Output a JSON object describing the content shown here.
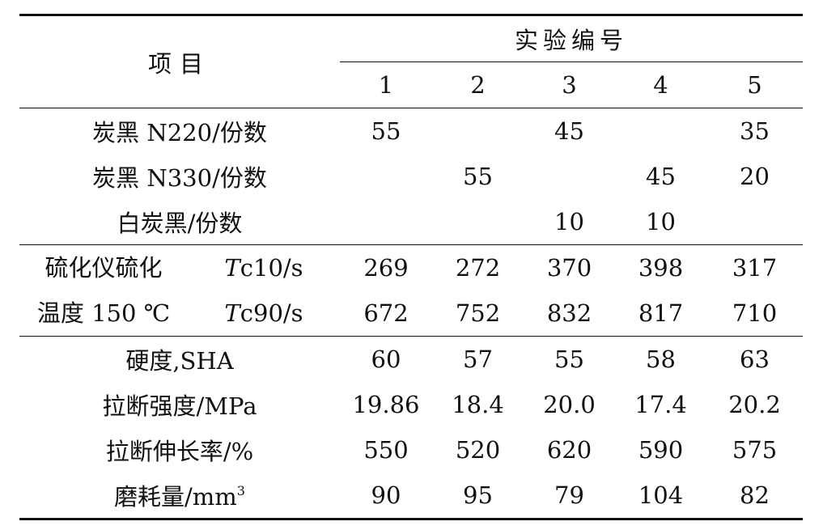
{
  "header": {
    "item_label": "项目",
    "group_label": "实验编号",
    "numbers": [
      "1",
      "2",
      "3",
      "4",
      "5"
    ]
  },
  "rows": [
    {
      "label": "炭黑 N220/份数",
      "values": [
        "55",
        "",
        "45",
        "",
        "35"
      ]
    },
    {
      "label": "炭黑 N330/份数",
      "values": [
        "",
        "55",
        "",
        "45",
        "20"
      ]
    },
    {
      "label": "白炭黑/份数",
      "values": [
        "",
        "",
        "10",
        "10",
        ""
      ]
    }
  ],
  "cure": {
    "group_line1": "硫化仪硫化",
    "group_line2": "温度 150 ℃",
    "rows": [
      {
        "var": "T",
        "label": "c10/s",
        "values": [
          "269",
          "272",
          "370",
          "398",
          "317"
        ]
      },
      {
        "var": "T",
        "label": "c90/s",
        "values": [
          "672",
          "752",
          "832",
          "817",
          "710"
        ]
      }
    ]
  },
  "props": [
    {
      "label": "硬度,SHA",
      "values": [
        "60",
        "57",
        "55",
        "58",
        "63"
      ]
    },
    {
      "label": "拉断强度/MPa",
      "values": [
        "19.86",
        "18.4",
        "20.0",
        "17.4",
        "20.2"
      ]
    },
    {
      "label": "拉断伸长率/%",
      "values": [
        "550",
        "520",
        "620",
        "590",
        "575"
      ]
    },
    {
      "label": "磨耗量/mm",
      "sup": "3",
      "values": [
        "90",
        "95",
        "79",
        "104",
        "82"
      ]
    }
  ]
}
